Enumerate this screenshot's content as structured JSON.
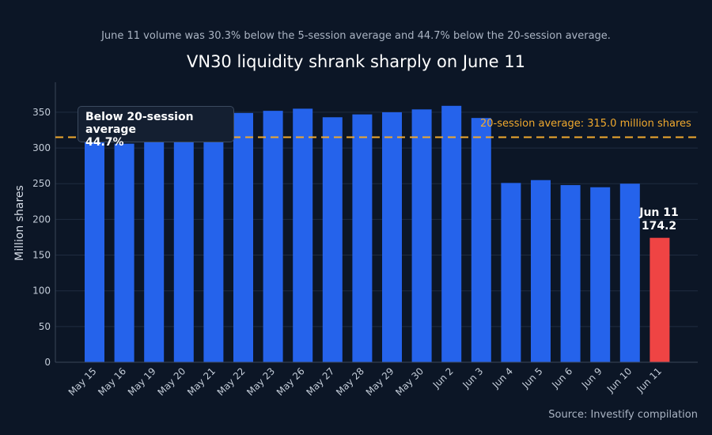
{
  "subtitle": "June 11 volume was 30.3% below the 5-session average and 44.7% below the 20-session average.",
  "title": "VN30 liquidity shrank sharply on June 11",
  "source": "Source: Investify compilation",
  "callout": {
    "line1": "Below 20-session average",
    "line2": "44.7%"
  },
  "average_label": "20-session average: 315.0 million shares",
  "highlight_label": {
    "date": "Jun 11",
    "value": "174.2"
  },
  "colors": {
    "bar": "#2563eb",
    "highlight": "#ef4444",
    "average_line": "#f0a92e",
    "background": "#0c1626"
  },
  "chart_data": {
    "type": "bar",
    "title": "VN30 liquidity shrank sharply on June 11",
    "ylabel": "Million shares",
    "xlabel": "",
    "categories": [
      "May 15",
      "May 16",
      "May 19",
      "May 20",
      "May 21",
      "May 22",
      "May 23",
      "May 26",
      "May 27",
      "May 28",
      "May 29",
      "May 30",
      "Jun 2",
      "Jun 3",
      "Jun 4",
      "Jun 5",
      "Jun 6",
      "Jun 9",
      "Jun 10",
      "Jun 11"
    ],
    "values": [
      312,
      306,
      315,
      318,
      320,
      349,
      352,
      355,
      343,
      347,
      350,
      354,
      359,
      342,
      251,
      255,
      248,
      245,
      250,
      174.2
    ],
    "ylim": [
      0,
      392
    ],
    "yticks": [
      0,
      50,
      100,
      150,
      200,
      250,
      300,
      350
    ],
    "reference_line": {
      "value": 315.0,
      "label": "20-session average: 315.0 million shares"
    },
    "highlight_index": 19,
    "grid": true
  }
}
